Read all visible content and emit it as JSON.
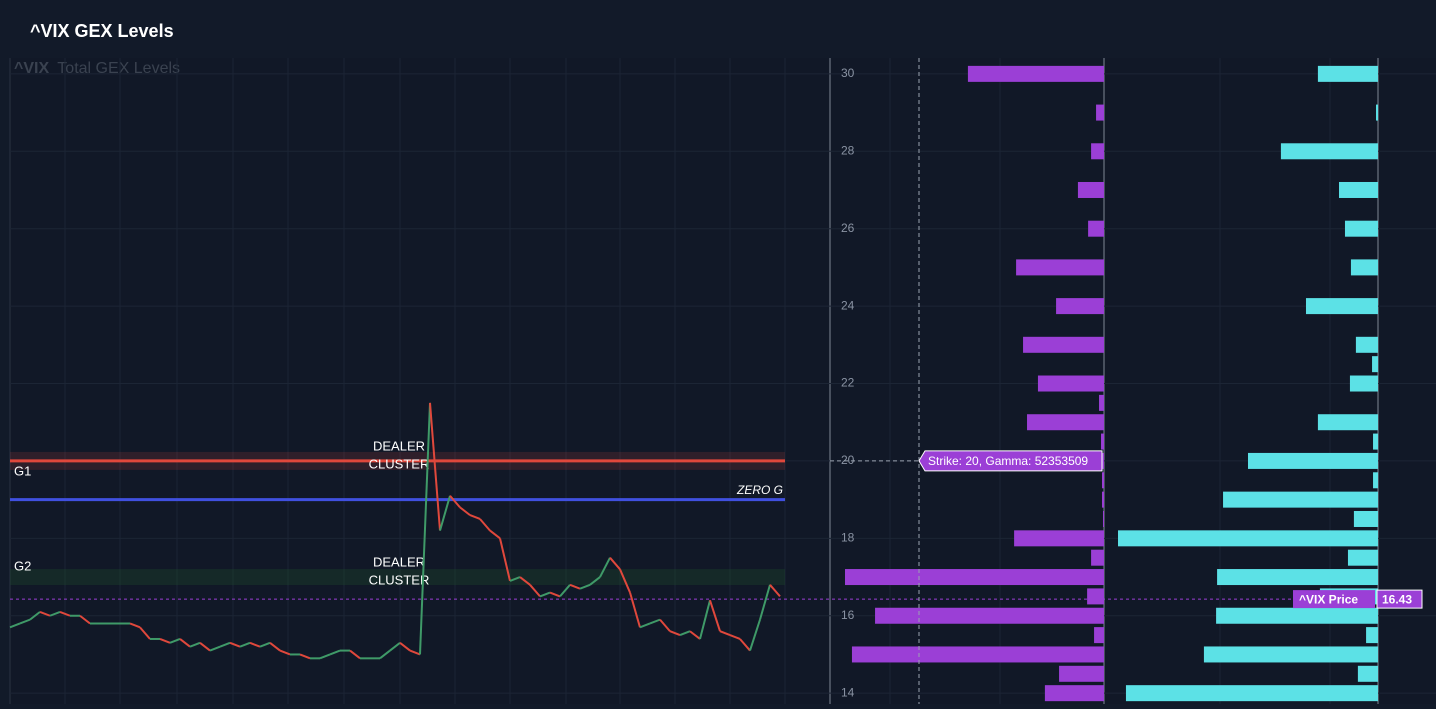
{
  "title": "^VIX GEX Levels",
  "chart_data": {
    "type": "gex",
    "ticker": "^VIX",
    "title": "Total GEX Levels",
    "ylim": [
      13.72,
      30.41
    ],
    "yticks": [
      14,
      16,
      18,
      20,
      22,
      24,
      26,
      28,
      30
    ],
    "grid": true,
    "price": {
      "up_color": "#3f9a68",
      "down_color": "#e0483c",
      "values": [
        15.7,
        15.8,
        15.9,
        16.1,
        16.0,
        16.1,
        16.0,
        16.0,
        15.8,
        15.8,
        15.8,
        15.8,
        15.8,
        15.7,
        15.4,
        15.4,
        15.3,
        15.4,
        15.2,
        15.3,
        15.1,
        15.2,
        15.3,
        15.2,
        15.3,
        15.2,
        15.3,
        15.1,
        15.0,
        15.0,
        14.9,
        14.9,
        15.0,
        15.1,
        15.1,
        14.9,
        14.9,
        14.9,
        15.1,
        15.3,
        15.1,
        15.0,
        21.5,
        18.2,
        19.1,
        18.8,
        18.6,
        18.5,
        18.2,
        18.0,
        16.9,
        17.0,
        16.8,
        16.5,
        16.6,
        16.5,
        16.8,
        16.7,
        16.8,
        17.0,
        17.5,
        17.2,
        16.6,
        15.7,
        15.8,
        15.9,
        15.6,
        15.5,
        15.6,
        15.4,
        16.4,
        15.6,
        15.5,
        15.4,
        15.1,
        15.9,
        16.8,
        16.5
      ]
    },
    "levels": [
      {
        "label": "G1",
        "value": 20,
        "color": "#e0483c"
      },
      {
        "label": "ZERO G",
        "value": 19,
        "color": "#4050e0"
      },
      {
        "label": "G2",
        "value": 17,
        "color": "#1d4a2c"
      }
    ],
    "annotations": [
      {
        "lines": [
          "DEALER",
          "CLUSTER"
        ],
        "value": 20
      },
      {
        "lines": [
          "DEALER",
          "CLUSTER"
        ],
        "value": 17
      }
    ],
    "current_price": {
      "label": "^VIX Price",
      "value": 16.43,
      "color": "#9b3fd6"
    },
    "tooltip": {
      "text": "Strike: 20, Gamma: 52353509",
      "value": 20
    },
    "strikes": [
      30,
      29,
      28,
      27,
      26,
      25,
      24,
      23,
      22.5,
      22,
      21.5,
      21,
      20.5,
      20,
      19.5,
      19,
      18.5,
      18,
      17.5,
      17,
      16.5,
      16,
      15.5,
      15,
      14.5,
      14
    ],
    "series": [
      {
        "color": "#9b3fd6",
        "values": [
          54800000,
          3200000,
          5200000,
          10500000,
          6400000,
          35400000,
          19300000,
          32600000,
          0,
          26600000,
          2000000,
          31000000,
          1200000,
          800000,
          800000,
          800000,
          400000,
          36200000,
          5200000,
          104300000,
          6800000,
          92200000,
          4000000,
          101500000,
          18100000,
          23800000
        ]
      },
      {
        "color": "#5ce1e6",
        "values": [
          24200000,
          800000,
          39100000,
          15700000,
          13300000,
          10900000,
          29000000,
          8900000,
          2400000,
          11300000,
          0,
          24200000,
          2000000,
          52353509,
          2000000,
          62400000,
          9700000,
          104700000,
          12100000,
          64800000,
          23400000,
          65200000,
          4800000,
          70100000,
          8100000,
          101500000
        ]
      }
    ]
  }
}
